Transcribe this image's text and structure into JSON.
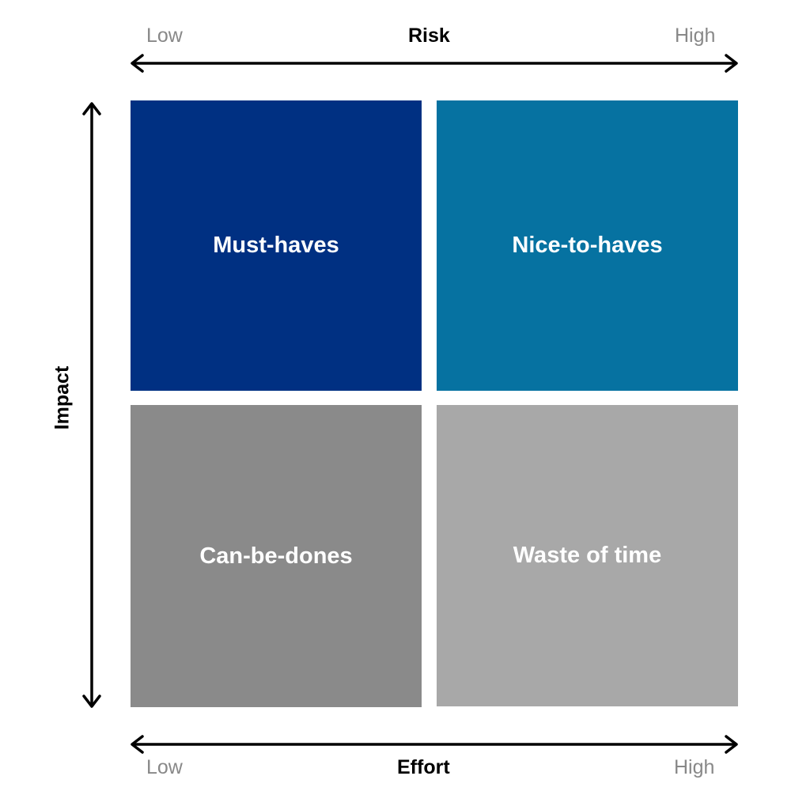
{
  "top_axis": {
    "title": "Risk",
    "low_label": "Low",
    "high_label": "High"
  },
  "bottom_axis": {
    "title": "Effort",
    "low_label": "Low",
    "high_label": "High"
  },
  "left_axis": {
    "title": "Impact"
  },
  "quadrants": [
    {
      "label": "Must-haves",
      "color": "#003082"
    },
    {
      "label": "Nice-to-haves",
      "color": "#0672A1"
    },
    {
      "label": "Can-be-dones",
      "color": "#8A8A8A"
    },
    {
      "label": "Waste of time",
      "color": "#A8A8A8"
    }
  ]
}
